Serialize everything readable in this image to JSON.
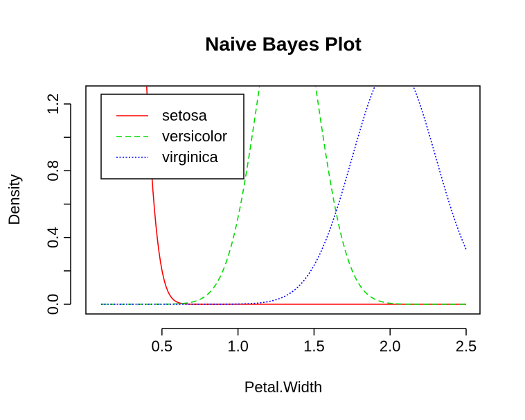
{
  "chart_data": {
    "type": "line",
    "title": "Naive Bayes Plot",
    "xlabel": "Petal.Width",
    "ylabel": "Density",
    "xlim": [
      0.1,
      2.5
    ],
    "ylim": [
      0,
      1.25
    ],
    "x_ticks": [
      0.5,
      1.0,
      1.5,
      2.0,
      2.5
    ],
    "x_tick_labels": [
      "0.5",
      "1.0",
      "1.5",
      "2.0",
      "2.5"
    ],
    "y_ticks": [
      0.0,
      0.2,
      0.4,
      0.6,
      0.8,
      1.0,
      1.2
    ],
    "y_tick_labels": [
      "0.0",
      "",
      "0.4",
      "",
      "0.8",
      "",
      "1.2"
    ],
    "legend": {
      "position": "top-left"
    },
    "series": [
      {
        "name": "setosa",
        "color": "#ff0000",
        "dash": "solid",
        "mean": 0.246,
        "sd": 0.105
      },
      {
        "name": "versicolor",
        "color": "#00dd00",
        "dash": "dashed",
        "mean": 1.326,
        "sd": 0.198
      },
      {
        "name": "virginica",
        "color": "#0000ff",
        "dash": "dotted",
        "mean": 2.026,
        "sd": 0.275
      }
    ]
  }
}
